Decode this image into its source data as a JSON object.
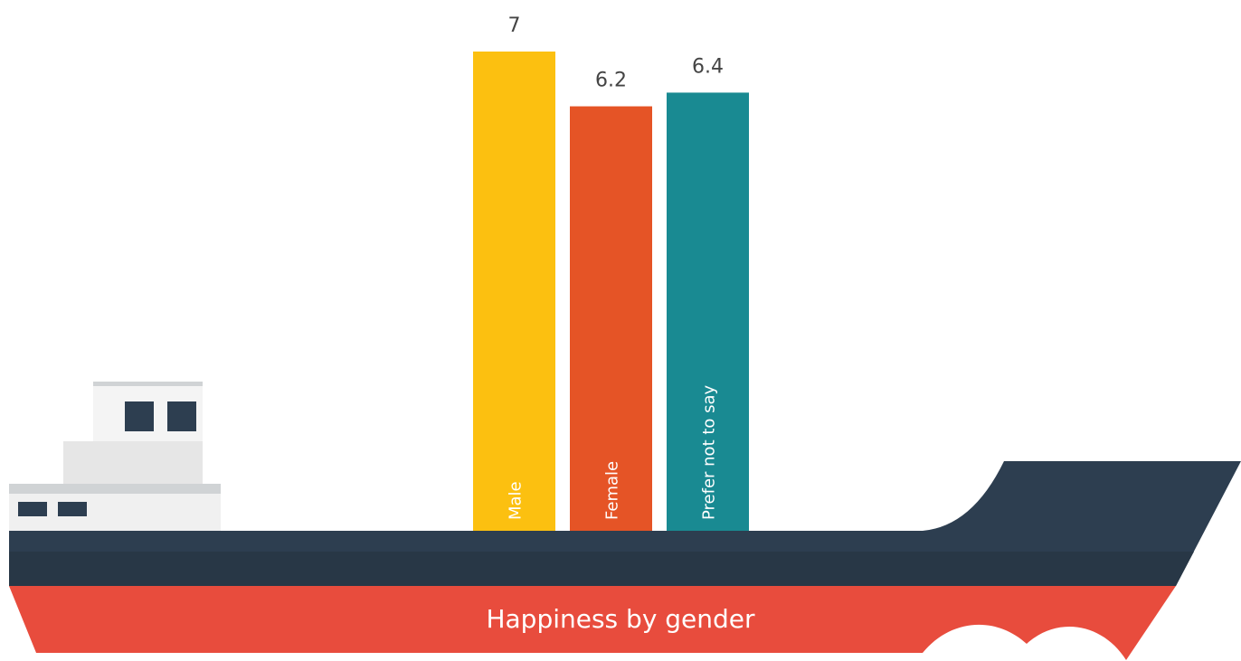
{
  "chart_data": {
    "type": "bar",
    "title": "Happiness by gender",
    "categories": [
      "Male",
      "Female",
      "Prefer not to say"
    ],
    "values": [
      7,
      6.2,
      6.4
    ],
    "colors": [
      "#fcc010",
      "#e55426",
      "#198a92"
    ]
  }
}
